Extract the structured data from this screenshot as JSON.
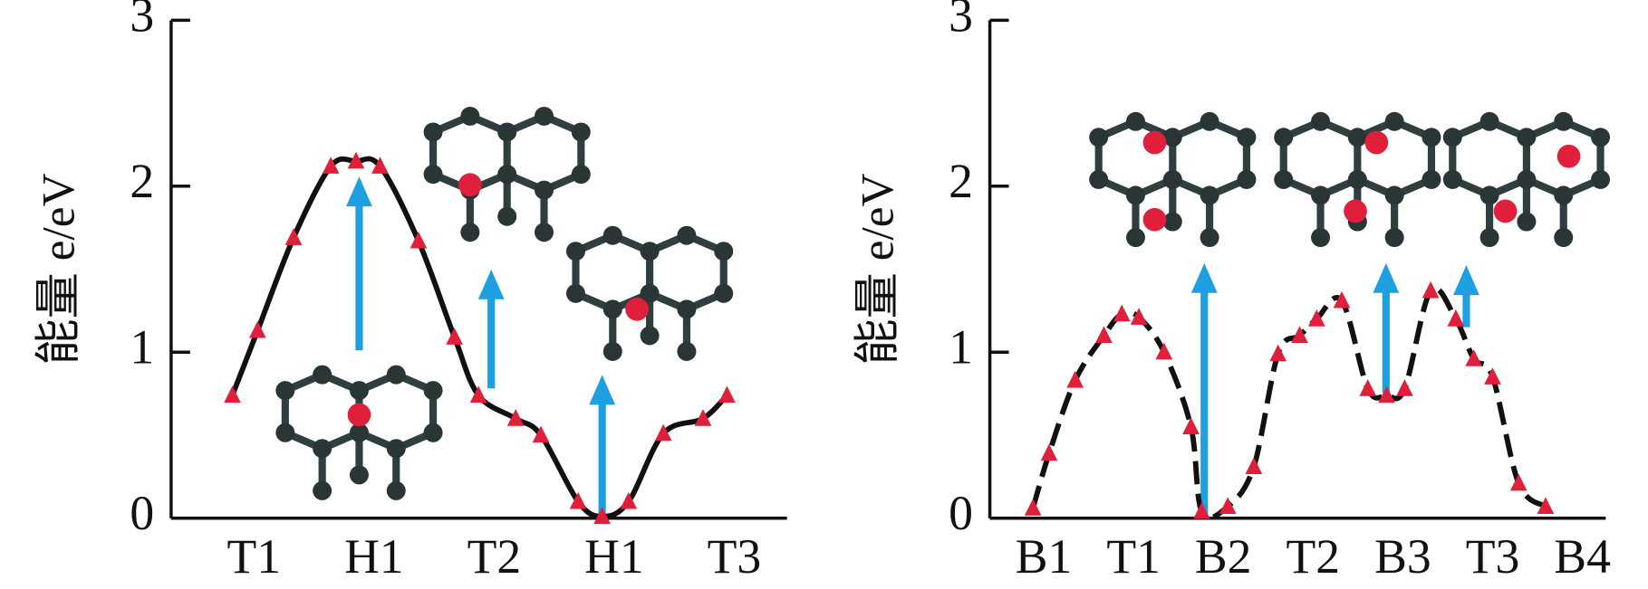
{
  "chart_data": [
    {
      "type": "line",
      "y_label": "能量 e/eV",
      "line_style": "solid",
      "color": "#111111",
      "marker_color": "#e0203a",
      "xlim": [
        -0.69,
        4.44
      ],
      "xticks": [
        {
          "value": 0,
          "label": "T1"
        },
        {
          "value": 1,
          "label": "H1"
        },
        {
          "value": 2,
          "label": "T2"
        },
        {
          "value": 3,
          "label": "H1"
        },
        {
          "value": 4,
          "label": "T3"
        }
      ],
      "ylim": [
        0,
        3
      ],
      "yticks": [
        0,
        1,
        2,
        3
      ],
      "x": [
        -0.18,
        0.03,
        0.33,
        0.64,
        0.85,
        1.05,
        1.37,
        1.67,
        1.87,
        2.18,
        2.39,
        2.7,
        2.9,
        3.12,
        3.41,
        3.74,
        3.94
      ],
      "values": [
        0.74,
        1.13,
        1.69,
        2.12,
        2.15,
        2.12,
        1.67,
        1.09,
        0.74,
        0.6,
        0.5,
        0.1,
        0.01,
        0.1,
        0.51,
        0.6,
        0.74
      ]
    },
    {
      "type": "line",
      "y_label": "能量 e/eV",
      "line_style": "dashed",
      "color": "#111111",
      "marker_color": "#e0203a",
      "xlim": [
        -0.6,
        6.26
      ],
      "xticks": [
        {
          "value": 0,
          "label": "B1"
        },
        {
          "value": 1,
          "label": "T1"
        },
        {
          "value": 2,
          "label": "B2"
        },
        {
          "value": 3,
          "label": "T2"
        },
        {
          "value": 4,
          "label": "B3"
        },
        {
          "value": 5,
          "label": "T3"
        },
        {
          "value": 6,
          "label": "B4"
        }
      ],
      "ylim": [
        0,
        3
      ],
      "yticks": [
        0,
        1,
        2,
        3
      ],
      "x": [
        -0.12,
        0.06,
        0.35,
        0.67,
        0.87,
        1.06,
        1.34,
        1.64,
        1.76,
        2.05,
        2.34,
        2.61,
        2.85,
        3.04,
        3.32,
        3.61,
        3.82,
        4.02,
        4.31,
        4.59,
        4.79,
        5.0,
        5.29,
        5.59
      ],
      "values": [
        0.06,
        0.39,
        0.83,
        1.1,
        1.23,
        1.21,
        1.0,
        0.55,
        0.04,
        0.07,
        0.31,
        0.99,
        1.1,
        1.2,
        1.31,
        0.78,
        0.74,
        0.78,
        1.37,
        1.2,
        0.96,
        0.85,
        0.21,
        0.07
      ]
    }
  ]
}
